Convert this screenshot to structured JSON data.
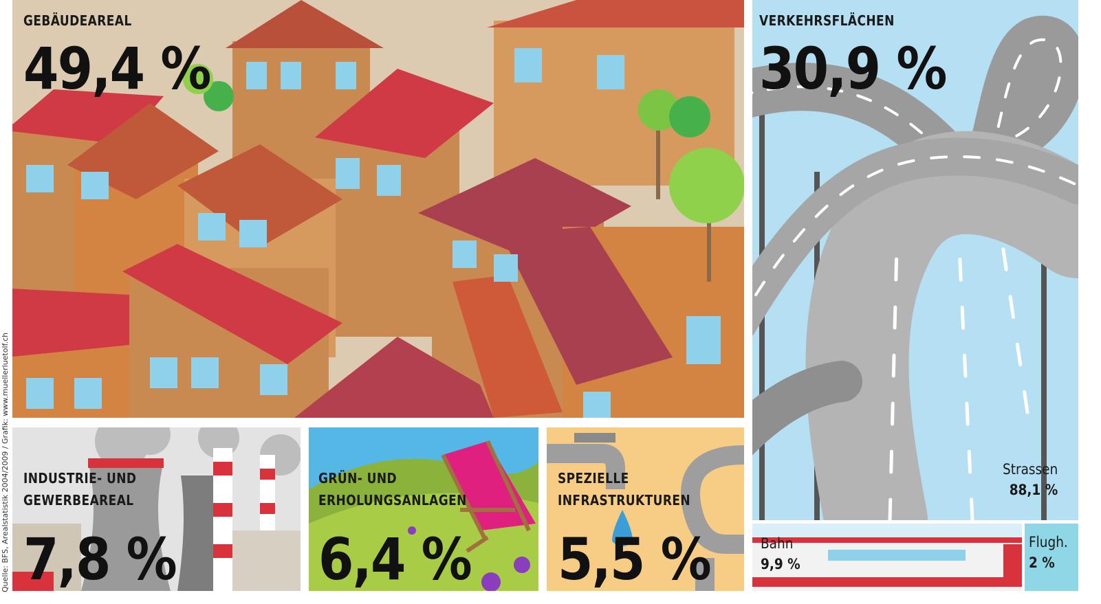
{
  "source": "Quelle: BFS, Arealstatistik 2004/2009 / Grafik: www.muellerluetolf.ch",
  "panels": [
    {
      "label": [
        "GEBÄUDEAREAL"
      ],
      "value": "49,4 %"
    },
    {
      "label": [
        "VERKEHRSFLÄCHEN"
      ],
      "value": "30,9 %",
      "parts": [
        {
          "label": "Strassen",
          "value": "88,1 %"
        },
        {
          "label": "Bahn",
          "value": "9,9 %"
        },
        {
          "label": "Flugh.",
          "value": "2 %"
        }
      ]
    },
    {
      "label": [
        "INDUSTRIE- UND",
        "GEWERBEAREAL"
      ],
      "value": "7,8 %"
    },
    {
      "label": [
        "GRÜN- UND",
        "ERHOLUNGSANLAGEN"
      ],
      "value": "6,4 %"
    },
    {
      "label": [
        "SPEZIELLE",
        "INFRASTRUKTUREN"
      ],
      "value": "5,5 %"
    }
  ]
}
